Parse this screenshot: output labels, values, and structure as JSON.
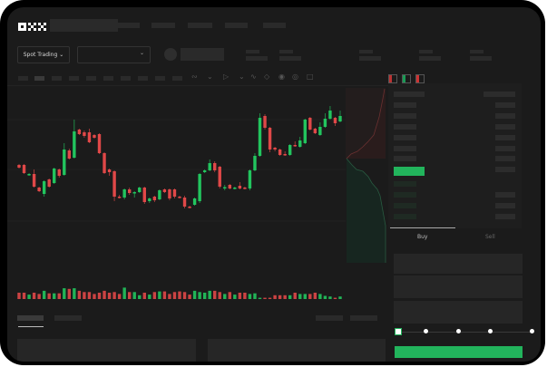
{
  "header": {
    "logo": "OKX"
  },
  "toolbar": {
    "market_type": "Spot Trading",
    "pair_dropdown_icon": "chevron-down-icon"
  },
  "trade_form": {
    "buy_tab": "Buy",
    "sell_tab": "Sell",
    "leverage_slider_value": 0
  },
  "colors": {
    "up": "#22c55e",
    "down": "#e04848",
    "accent": "#22b45c",
    "background": "#1b1b1b"
  },
  "chart_data": {
    "type": "candlestick",
    "grid": true,
    "candles": [
      [
        118,
        119,
        114,
        115
      ],
      [
        118,
        119,
        108,
        109
      ],
      [
        107,
        109,
        106,
        108
      ],
      [
        108,
        113,
        93,
        94
      ],
      [
        93,
        94,
        88,
        89
      ],
      [
        86,
        101,
        83,
        100
      ],
      [
        102,
        103,
        93,
        94
      ],
      [
        98,
        115,
        97,
        114
      ],
      [
        113,
        114,
        104,
        106
      ],
      [
        107,
        142,
        106,
        135
      ],
      [
        134,
        136,
        124,
        125
      ],
      [
        126,
        168,
        125,
        155
      ],
      [
        157,
        158,
        151,
        152
      ],
      [
        154,
        156,
        148,
        150
      ],
      [
        154,
        158,
        142,
        143
      ],
      [
        151,
        152,
        147,
        148
      ],
      [
        152,
        153,
        130,
        131
      ],
      [
        131,
        132,
        108,
        109
      ],
      [
        113,
        114,
        106,
        110
      ],
      [
        111,
        112,
        78,
        83
      ],
      [
        83,
        85,
        81,
        82
      ],
      [
        82,
        92,
        80,
        91
      ],
      [
        91,
        93,
        85,
        87
      ],
      [
        87,
        89,
        82,
        88
      ],
      [
        88,
        94,
        87,
        93
      ],
      [
        93,
        94,
        75,
        77
      ],
      [
        78,
        82,
        76,
        81
      ],
      [
        83,
        84,
        77,
        79
      ],
      [
        80,
        91,
        79,
        90
      ],
      [
        91,
        92,
        87,
        88
      ],
      [
        91,
        92,
        79,
        81
      ],
      [
        91,
        92,
        81,
        83
      ],
      [
        83,
        84,
        81,
        82
      ],
      [
        82,
        84,
        70,
        72
      ],
      [
        72,
        73,
        70,
        71
      ],
      [
        74,
        82,
        73,
        81
      ],
      [
        78,
        109,
        76,
        108
      ],
      [
        110,
        113,
        109,
        112
      ],
      [
        112,
        124,
        111,
        120
      ],
      [
        120,
        122,
        110,
        112
      ],
      [
        116,
        117,
        92,
        94
      ],
      [
        93,
        96,
        90,
        93.5
      ],
      [
        96,
        97,
        91,
        92
      ],
      [
        92,
        94,
        91,
        93
      ],
      [
        95,
        99,
        91,
        92
      ],
      [
        93,
        94,
        91,
        92
      ],
      [
        92,
        113,
        90,
        112
      ],
      [
        112,
        131,
        111,
        128
      ],
      [
        128,
        175,
        127,
        170
      ],
      [
        172,
        174,
        157,
        159
      ],
      [
        159,
        160,
        132,
        135
      ],
      [
        137,
        138,
        133,
        135
      ],
      [
        135,
        136,
        128,
        129
      ],
      [
        130,
        133,
        128,
        129
      ],
      [
        129,
        141,
        128,
        140
      ],
      [
        140,
        144,
        138,
        139
      ],
      [
        138,
        149,
        137,
        145
      ],
      [
        142,
        169,
        141,
        168
      ],
      [
        170,
        171,
        156,
        157
      ],
      [
        158,
        159,
        152,
        153
      ],
      [
        151,
        165,
        150,
        160
      ],
      [
        160,
        175,
        159,
        169
      ],
      [
        169,
        183,
        168,
        178
      ],
      [
        170,
        171,
        161,
        164
      ],
      [
        166,
        178,
        165,
        172
      ]
    ],
    "candle_format": [
      "open",
      "high",
      "low",
      "close"
    ],
    "volume": [
      10,
      10,
      7,
      10,
      8,
      13,
      9,
      9,
      9,
      17,
      16,
      17,
      13,
      11,
      11,
      8,
      10,
      13,
      10,
      11,
      8,
      18,
      11,
      11,
      6,
      10,
      7,
      11,
      12,
      12,
      8,
      11,
      12,
      11,
      7,
      13,
      11,
      10,
      13,
      13,
      11,
      8,
      11,
      7,
      10,
      10,
      8,
      9,
      2,
      2,
      2,
      6,
      6,
      6,
      6,
      10,
      8,
      8,
      8,
      10,
      8,
      5,
      4,
      2,
      4
    ]
  }
}
